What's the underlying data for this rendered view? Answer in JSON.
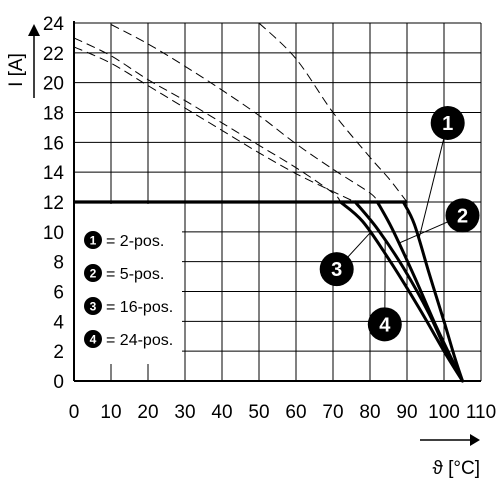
{
  "chart_data": {
    "type": "line",
    "xlabel": "ϑ [°C]",
    "ylabel": "I [A]",
    "xlim": [
      0,
      110
    ],
    "ylim": [
      0,
      24
    ],
    "x_ticks": [
      "0",
      "10",
      "20",
      "30",
      "40",
      "50",
      "60",
      "70",
      "80",
      "90",
      "100",
      "110"
    ],
    "y_ticks": [
      "0",
      "2",
      "4",
      "6",
      "8",
      "10",
      "12",
      "14",
      "16",
      "18",
      "20",
      "22",
      "24"
    ],
    "grid": true,
    "legend_position": "left, below 12 A line",
    "legend": [
      {
        "marker": "1",
        "label": "= 2-pos."
      },
      {
        "marker": "2",
        "label": "= 5-pos."
      },
      {
        "marker": "3",
        "label": "= 16-pos."
      },
      {
        "marker": "4",
        "label": "= 24-pos."
      }
    ],
    "rated_current_line": {
      "x": [
        0,
        90
      ],
      "y": [
        12,
        12
      ]
    },
    "series": [
      {
        "marker": "1",
        "x": [
          89,
          92,
          96,
          100,
          103,
          105
        ],
        "y": [
          12,
          10.5,
          7.2,
          4.0,
          1.5,
          0
        ]
      },
      {
        "marker": "2",
        "x": [
          82,
          86,
          92,
          98,
          103,
          105
        ],
        "y": [
          12,
          10.2,
          7.0,
          3.6,
          1.0,
          0
        ]
      },
      {
        "marker": "3",
        "x": [
          72,
          78,
          85,
          93,
          100,
          105
        ],
        "y": [
          12,
          10.7,
          8.2,
          5.0,
          2.0,
          0
        ]
      },
      {
        "marker": "4",
        "x": [
          76,
          82,
          89,
          96,
          101,
          105
        ],
        "y": [
          12,
          10.2,
          7.6,
          4.5,
          1.8,
          0
        ]
      }
    ],
    "dashed_series": [
      {
        "x": [
          50,
          60,
          70,
          80,
          85,
          90
        ],
        "y": [
          24,
          21.6,
          18.0,
          15.0,
          13.6,
          12.0
        ]
      },
      {
        "x": [
          10,
          20,
          30,
          40,
          50,
          60,
          70,
          80,
          82
        ],
        "y": [
          23.9,
          22.6,
          21.1,
          19.5,
          17.8,
          15.9,
          14.2,
          12.6,
          12.0
        ]
      },
      {
        "x": [
          0,
          10,
          20,
          30,
          40,
          50,
          60,
          70,
          72
        ],
        "y": [
          23.0,
          21.8,
          20.2,
          18.8,
          17.3,
          15.8,
          14.3,
          12.6,
          12.0
        ]
      },
      {
        "x": [
          0,
          10,
          20,
          30,
          40,
          50,
          60,
          70,
          76
        ],
        "y": [
          22.4,
          21.3,
          19.8,
          18.3,
          16.8,
          15.3,
          13.9,
          12.7,
          12.0
        ]
      }
    ],
    "callouts": [
      {
        "marker": "1",
        "x": 101,
        "y": 17.3
      },
      {
        "marker": "2",
        "x": 105,
        "y": 11.1
      },
      {
        "marker": "3",
        "x": 71,
        "y": 7.5
      },
      {
        "marker": "4",
        "x": 84,
        "y": 3.8
      }
    ]
  }
}
